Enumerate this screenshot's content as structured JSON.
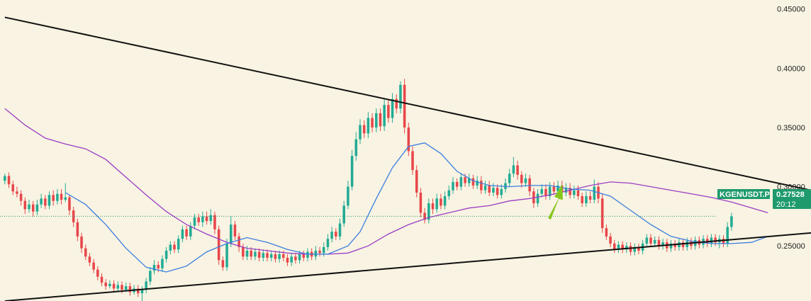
{
  "chart_data": {
    "type": "candlestick",
    "symbol": "KGENUSDT.P",
    "last_price": "0.27528",
    "countdown": "20:12",
    "watermark": "",
    "y_axis": {
      "ticks": [
        {
          "value": 0.45,
          "label": "0.45000"
        },
        {
          "value": 0.4,
          "label": "0.40000"
        },
        {
          "value": 0.35,
          "label": "0.35000"
        },
        {
          "value": 0.3,
          "label": "0.30000"
        },
        {
          "value": 0.25,
          "label": "0.25000"
        }
      ],
      "ylim": [
        0.2035,
        0.4576
      ]
    },
    "bar_count": 190,
    "candles": [
      [
        0.305,
        0.309,
        0.302,
        0.311
      ],
      [
        0.309,
        0.302,
        0.299,
        0.312
      ],
      [
        0.302,
        0.296,
        0.293,
        0.305
      ],
      [
        0.296,
        0.294,
        0.291,
        0.3
      ],
      [
        0.294,
        0.288,
        0.284,
        0.297
      ],
      [
        0.288,
        0.281,
        0.277,
        0.291
      ],
      [
        0.281,
        0.285,
        0.278,
        0.289
      ],
      [
        0.285,
        0.279,
        0.275,
        0.288
      ],
      [
        0.279,
        0.285,
        0.276,
        0.289
      ],
      [
        0.285,
        0.29,
        0.282,
        0.294
      ],
      [
        0.29,
        0.284,
        0.281,
        0.293
      ],
      [
        0.284,
        0.293,
        0.281,
        0.296
      ],
      [
        0.293,
        0.288,
        0.284,
        0.297
      ],
      [
        0.288,
        0.294,
        0.285,
        0.298
      ],
      [
        0.294,
        0.289,
        0.285,
        0.298
      ],
      [
        0.289,
        0.291,
        0.287,
        0.303
      ],
      [
        0.291,
        0.28,
        0.276,
        0.293
      ],
      [
        0.28,
        0.27,
        0.266,
        0.283
      ],
      [
        0.27,
        0.258,
        0.254,
        0.273
      ],
      [
        0.258,
        0.248,
        0.244,
        0.261
      ],
      [
        0.248,
        0.241,
        0.238,
        0.251
      ],
      [
        0.241,
        0.236,
        0.233,
        0.244
      ],
      [
        0.236,
        0.23,
        0.227,
        0.239
      ],
      [
        0.23,
        0.224,
        0.221,
        0.233
      ],
      [
        0.224,
        0.219,
        0.216,
        0.227
      ],
      [
        0.219,
        0.216,
        0.213,
        0.222
      ],
      [
        0.216,
        0.218,
        0.214,
        0.221
      ],
      [
        0.218,
        0.214,
        0.211,
        0.221
      ],
      [
        0.214,
        0.217,
        0.212,
        0.22
      ],
      [
        0.217,
        0.213,
        0.21,
        0.22
      ],
      [
        0.213,
        0.216,
        0.211,
        0.219
      ],
      [
        0.216,
        0.211,
        0.208,
        0.219
      ],
      [
        0.211,
        0.214,
        0.209,
        0.217
      ],
      [
        0.214,
        0.21,
        0.207,
        0.217
      ],
      [
        0.21,
        0.213,
        0.203,
        0.216
      ],
      [
        0.213,
        0.22,
        0.21,
        0.223
      ],
      [
        0.22,
        0.229,
        0.217,
        0.232
      ],
      [
        0.229,
        0.234,
        0.226,
        0.238
      ],
      [
        0.234,
        0.231,
        0.228,
        0.237
      ],
      [
        0.231,
        0.239,
        0.228,
        0.242
      ],
      [
        0.239,
        0.246,
        0.236,
        0.249
      ],
      [
        0.246,
        0.251,
        0.243,
        0.254
      ],
      [
        0.251,
        0.247,
        0.244,
        0.254
      ],
      [
        0.247,
        0.256,
        0.244,
        0.259
      ],
      [
        0.256,
        0.264,
        0.253,
        0.267
      ],
      [
        0.264,
        0.258,
        0.255,
        0.267
      ],
      [
        0.258,
        0.267,
        0.255,
        0.27
      ],
      [
        0.267,
        0.274,
        0.264,
        0.277
      ],
      [
        0.274,
        0.27,
        0.267,
        0.277
      ],
      [
        0.27,
        0.275,
        0.266,
        0.279
      ],
      [
        0.275,
        0.271,
        0.268,
        0.279
      ],
      [
        0.271,
        0.276,
        0.268,
        0.281
      ],
      [
        0.276,
        0.264,
        0.26,
        0.279
      ],
      [
        0.264,
        0.238,
        0.234,
        0.267
      ],
      [
        0.238,
        0.232,
        0.229,
        0.241
      ],
      [
        0.232,
        0.252,
        0.229,
        0.256
      ],
      [
        0.252,
        0.268,
        0.249,
        0.275
      ],
      [
        0.268,
        0.258,
        0.255,
        0.271
      ],
      [
        0.258,
        0.249,
        0.245,
        0.261
      ],
      [
        0.249,
        0.241,
        0.238,
        0.252
      ],
      [
        0.241,
        0.246,
        0.238,
        0.25
      ],
      [
        0.246,
        0.241,
        0.238,
        0.249
      ],
      [
        0.241,
        0.245,
        0.238,
        0.248
      ],
      [
        0.245,
        0.24,
        0.237,
        0.248
      ],
      [
        0.24,
        0.244,
        0.237,
        0.247
      ],
      [
        0.244,
        0.24,
        0.237,
        0.247
      ],
      [
        0.24,
        0.243,
        0.237,
        0.246
      ],
      [
        0.243,
        0.239,
        0.236,
        0.246
      ],
      [
        0.239,
        0.243,
        0.236,
        0.246
      ],
      [
        0.243,
        0.24,
        0.237,
        0.246
      ],
      [
        0.24,
        0.236,
        0.233,
        0.243
      ],
      [
        0.236,
        0.241,
        0.233,
        0.244
      ],
      [
        0.241,
        0.238,
        0.235,
        0.244
      ],
      [
        0.238,
        0.243,
        0.235,
        0.246
      ],
      [
        0.243,
        0.24,
        0.237,
        0.246
      ],
      [
        0.24,
        0.245,
        0.237,
        0.248
      ],
      [
        0.245,
        0.241,
        0.238,
        0.248
      ],
      [
        0.241,
        0.246,
        0.238,
        0.25
      ],
      [
        0.246,
        0.244,
        0.241,
        0.249
      ],
      [
        0.244,
        0.249,
        0.241,
        0.253
      ],
      [
        0.249,
        0.256,
        0.246,
        0.26
      ],
      [
        0.256,
        0.262,
        0.253,
        0.266
      ],
      [
        0.262,
        0.258,
        0.255,
        0.265
      ],
      [
        0.258,
        0.269,
        0.255,
        0.273
      ],
      [
        0.269,
        0.284,
        0.266,
        0.288
      ],
      [
        0.284,
        0.3,
        0.281,
        0.305
      ],
      [
        0.3,
        0.326,
        0.297,
        0.331
      ],
      [
        0.326,
        0.34,
        0.322,
        0.346
      ],
      [
        0.34,
        0.352,
        0.336,
        0.357
      ],
      [
        0.352,
        0.345,
        0.341,
        0.356
      ],
      [
        0.345,
        0.358,
        0.341,
        0.363
      ],
      [
        0.358,
        0.35,
        0.346,
        0.362
      ],
      [
        0.35,
        0.362,
        0.346,
        0.366
      ],
      [
        0.362,
        0.351,
        0.347,
        0.366
      ],
      [
        0.351,
        0.369,
        0.347,
        0.374
      ],
      [
        0.369,
        0.358,
        0.354,
        0.373
      ],
      [
        0.358,
        0.374,
        0.354,
        0.379
      ],
      [
        0.374,
        0.366,
        0.362,
        0.378
      ],
      [
        0.366,
        0.386,
        0.362,
        0.389
      ],
      [
        0.386,
        0.35,
        0.345,
        0.391
      ],
      [
        0.35,
        0.33,
        0.326,
        0.354
      ],
      [
        0.33,
        0.314,
        0.31,
        0.334
      ],
      [
        0.314,
        0.295,
        0.291,
        0.318
      ],
      [
        0.295,
        0.278,
        0.274,
        0.299
      ],
      [
        0.278,
        0.272,
        0.269,
        0.282
      ],
      [
        0.272,
        0.286,
        0.269,
        0.29
      ],
      [
        0.286,
        0.281,
        0.277,
        0.29
      ],
      [
        0.281,
        0.29,
        0.278,
        0.294
      ],
      [
        0.29,
        0.284,
        0.281,
        0.294
      ],
      [
        0.284,
        0.292,
        0.281,
        0.296
      ],
      [
        0.292,
        0.297,
        0.289,
        0.301
      ],
      [
        0.297,
        0.304,
        0.294,
        0.308
      ],
      [
        0.304,
        0.3,
        0.297,
        0.307
      ],
      [
        0.3,
        0.308,
        0.297,
        0.311
      ],
      [
        0.308,
        0.303,
        0.3,
        0.311
      ],
      [
        0.303,
        0.307,
        0.3,
        0.311
      ],
      [
        0.307,
        0.301,
        0.298,
        0.31
      ],
      [
        0.301,
        0.305,
        0.298,
        0.309
      ],
      [
        0.305,
        0.297,
        0.294,
        0.309
      ],
      [
        0.297,
        0.301,
        0.294,
        0.305
      ],
      [
        0.301,
        0.295,
        0.292,
        0.305
      ],
      [
        0.295,
        0.299,
        0.292,
        0.303
      ],
      [
        0.299,
        0.293,
        0.29,
        0.302
      ],
      [
        0.293,
        0.298,
        0.29,
        0.302
      ],
      [
        0.298,
        0.303,
        0.295,
        0.307
      ],
      [
        0.303,
        0.311,
        0.3,
        0.315
      ],
      [
        0.311,
        0.318,
        0.308,
        0.325
      ],
      [
        0.318,
        0.31,
        0.306,
        0.322
      ],
      [
        0.31,
        0.303,
        0.299,
        0.313
      ],
      [
        0.303,
        0.307,
        0.3,
        0.311
      ],
      [
        0.307,
        0.296,
        0.292,
        0.31
      ],
      [
        0.296,
        0.286,
        0.282,
        0.299
      ],
      [
        0.286,
        0.294,
        0.283,
        0.298
      ],
      [
        0.294,
        0.298,
        0.291,
        0.302
      ],
      [
        0.298,
        0.292,
        0.289,
        0.302
      ],
      [
        0.292,
        0.3,
        0.289,
        0.304
      ],
      [
        0.3,
        0.296,
        0.293,
        0.304
      ],
      [
        0.296,
        0.301,
        0.293,
        0.305
      ],
      [
        0.301,
        0.295,
        0.292,
        0.305
      ],
      [
        0.295,
        0.299,
        0.292,
        0.303
      ],
      [
        0.299,
        0.293,
        0.29,
        0.303
      ],
      [
        0.293,
        0.297,
        0.29,
        0.301
      ],
      [
        0.297,
        0.292,
        0.289,
        0.301
      ],
      [
        0.292,
        0.286,
        0.283,
        0.295
      ],
      [
        0.286,
        0.292,
        0.283,
        0.296
      ],
      [
        0.292,
        0.289,
        0.286,
        0.296
      ],
      [
        0.289,
        0.3,
        0.286,
        0.306
      ],
      [
        0.3,
        0.29,
        0.286,
        0.304
      ],
      [
        0.29,
        0.265,
        0.261,
        0.294
      ],
      [
        0.265,
        0.258,
        0.255,
        0.268
      ],
      [
        0.258,
        0.252,
        0.249,
        0.261
      ],
      [
        0.252,
        0.247,
        0.244,
        0.255
      ],
      [
        0.247,
        0.251,
        0.244,
        0.254
      ],
      [
        0.251,
        0.247,
        0.244,
        0.254
      ],
      [
        0.247,
        0.25,
        0.244,
        0.253
      ],
      [
        0.25,
        0.245,
        0.242,
        0.253
      ],
      [
        0.245,
        0.249,
        0.242,
        0.252
      ],
      [
        0.249,
        0.246,
        0.243,
        0.252
      ],
      [
        0.246,
        0.252,
        0.243,
        0.255
      ],
      [
        0.252,
        0.257,
        0.249,
        0.26
      ],
      [
        0.257,
        0.252,
        0.249,
        0.26
      ],
      [
        0.252,
        0.255,
        0.249,
        0.258
      ],
      [
        0.255,
        0.25,
        0.247,
        0.258
      ],
      [
        0.25,
        0.253,
        0.247,
        0.256
      ],
      [
        0.253,
        0.248,
        0.245,
        0.256
      ],
      [
        0.248,
        0.252,
        0.245,
        0.255
      ],
      [
        0.252,
        0.249,
        0.246,
        0.255
      ],
      [
        0.249,
        0.253,
        0.246,
        0.256
      ],
      [
        0.253,
        0.249,
        0.246,
        0.256
      ],
      [
        0.249,
        0.254,
        0.246,
        0.257
      ],
      [
        0.254,
        0.25,
        0.247,
        0.257
      ],
      [
        0.25,
        0.255,
        0.247,
        0.258
      ],
      [
        0.255,
        0.251,
        0.248,
        0.258
      ],
      [
        0.251,
        0.256,
        0.248,
        0.259
      ],
      [
        0.256,
        0.252,
        0.249,
        0.259
      ],
      [
        0.252,
        0.257,
        0.249,
        0.26
      ],
      [
        0.257,
        0.253,
        0.25,
        0.26
      ],
      [
        0.253,
        0.256,
        0.248,
        0.259
      ],
      [
        0.256,
        0.252,
        0.249,
        0.259
      ],
      [
        0.252,
        0.266,
        0.249,
        0.27
      ],
      [
        0.266,
        0.275,
        0.263,
        0.278
      ]
    ],
    "ma_fast": [
      [
        15,
        0.295
      ],
      [
        20,
        0.285
      ],
      [
        25,
        0.268
      ],
      [
        30,
        0.248
      ],
      [
        35,
        0.232
      ],
      [
        40,
        0.228
      ],
      [
        45,
        0.233
      ],
      [
        50,
        0.245
      ],
      [
        55,
        0.252
      ],
      [
        60,
        0.257
      ],
      [
        65,
        0.253
      ],
      [
        70,
        0.247
      ],
      [
        75,
        0.243
      ],
      [
        80,
        0.243
      ],
      [
        85,
        0.25
      ],
      [
        88,
        0.262
      ],
      [
        92,
        0.29
      ],
      [
        96,
        0.316
      ],
      [
        100,
        0.334
      ],
      [
        104,
        0.337
      ],
      [
        108,
        0.328
      ],
      [
        112,
        0.313
      ],
      [
        116,
        0.305
      ],
      [
        120,
        0.301
      ],
      [
        125,
        0.3
      ],
      [
        130,
        0.301
      ],
      [
        135,
        0.301
      ],
      [
        140,
        0.298
      ],
      [
        145,
        0.297
      ],
      [
        150,
        0.292
      ],
      [
        155,
        0.28
      ],
      [
        160,
        0.268
      ],
      [
        165,
        0.258
      ],
      [
        170,
        0.254
      ],
      [
        175,
        0.252
      ],
      [
        180,
        0.252
      ],
      [
        185,
        0.253
      ],
      [
        189,
        0.258
      ]
    ],
    "ma_slow": [
      [
        0,
        0.366
      ],
      [
        5,
        0.352
      ],
      [
        10,
        0.341
      ],
      [
        15,
        0.336
      ],
      [
        20,
        0.332
      ],
      [
        25,
        0.323
      ],
      [
        30,
        0.308
      ],
      [
        35,
        0.293
      ],
      [
        40,
        0.279
      ],
      [
        45,
        0.268
      ],
      [
        50,
        0.26
      ],
      [
        55,
        0.253
      ],
      [
        60,
        0.248
      ],
      [
        65,
        0.246
      ],
      [
        70,
        0.244
      ],
      [
        75,
        0.243
      ],
      [
        80,
        0.243
      ],
      [
        85,
        0.244
      ],
      [
        90,
        0.25
      ],
      [
        95,
        0.26
      ],
      [
        100,
        0.268
      ],
      [
        105,
        0.274
      ],
      [
        110,
        0.278
      ],
      [
        115,
        0.282
      ],
      [
        120,
        0.284
      ],
      [
        125,
        0.288
      ],
      [
        130,
        0.29
      ],
      [
        135,
        0.293
      ],
      [
        140,
        0.297
      ],
      [
        145,
        0.301
      ],
      [
        150,
        0.304
      ],
      [
        155,
        0.303
      ],
      [
        160,
        0.3
      ],
      [
        165,
        0.297
      ],
      [
        170,
        0.294
      ],
      [
        175,
        0.291
      ],
      [
        180,
        0.287
      ],
      [
        189,
        0.278
      ]
    ],
    "trendlines": [
      {
        "name": "resistance",
        "x1": 0,
        "y1": 0.443,
        "x2": 212,
        "y2": 0.288,
        "color": "#111111"
      },
      {
        "name": "support",
        "x1": 0,
        "y1": 0.2035,
        "x2": 212,
        "y2": 0.2645,
        "color": "#111111"
      }
    ],
    "last_price_line": 0.275,
    "colors": {
      "background": "#f8f3e2",
      "up": "#22ab94",
      "down": "#e8464a",
      "ma_fast": "#3c7ee0",
      "ma_slow": "#9b3ec6",
      "price_tag": "#1e9a6c",
      "arrow": "#86c61f"
    }
  }
}
